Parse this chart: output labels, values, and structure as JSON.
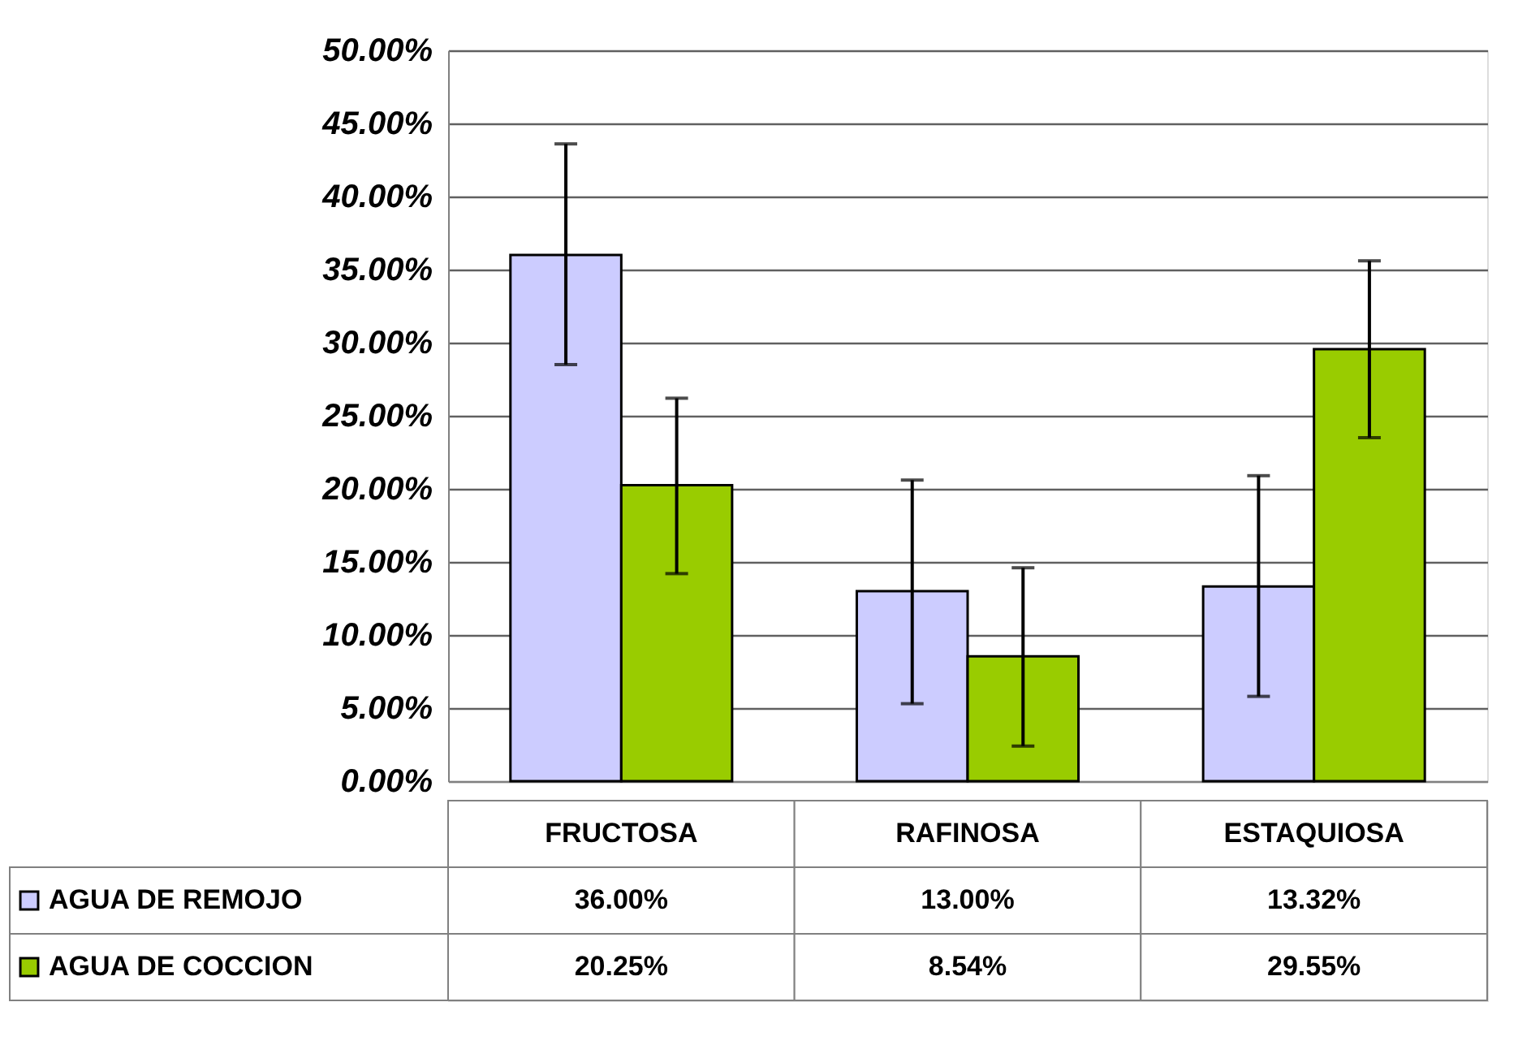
{
  "chart_data": {
    "type": "bar",
    "categories": [
      "FRUCTOSA",
      "RAFINOSA",
      "ESTAQUIOSA"
    ],
    "series": [
      {
        "name": "AGUA DE REMOJO",
        "color": "#ccccff",
        "values": [
          36.0,
          13.0,
          13.32
        ],
        "value_labels": [
          "36.00%",
          "13.00%",
          "13.32%"
        ],
        "errors": [
          [
            28.5,
            43.6
          ],
          [
            5.3,
            20.6
          ],
          [
            5.8,
            20.9
          ]
        ]
      },
      {
        "name": "AGUA DE COCCION",
        "color": "#99cc00",
        "values": [
          20.25,
          8.54,
          29.55
        ],
        "value_labels": [
          "20.25%",
          "8.54%",
          "29.55%"
        ],
        "errors": [
          [
            14.2,
            26.2
          ],
          [
            2.4,
            14.6
          ],
          [
            23.5,
            35.6
          ]
        ]
      }
    ],
    "ylim": [
      0,
      50
    ],
    "yticks": [
      {
        "value": 0,
        "label": "0.00%"
      },
      {
        "value": 5,
        "label": "5.00%"
      },
      {
        "value": 10,
        "label": "10.00%"
      },
      {
        "value": 15,
        "label": "15.00%"
      },
      {
        "value": 20,
        "label": "20.00%"
      },
      {
        "value": 25,
        "label": "25.00%"
      },
      {
        "value": 30,
        "label": "30.00%"
      },
      {
        "value": 35,
        "label": "35.00%"
      },
      {
        "value": 40,
        "label": "40.00%"
      },
      {
        "value": 45,
        "label": "45.00%"
      },
      {
        "value": 50,
        "label": "50.00%"
      }
    ],
    "grid": "y",
    "legend": "bottom"
  }
}
